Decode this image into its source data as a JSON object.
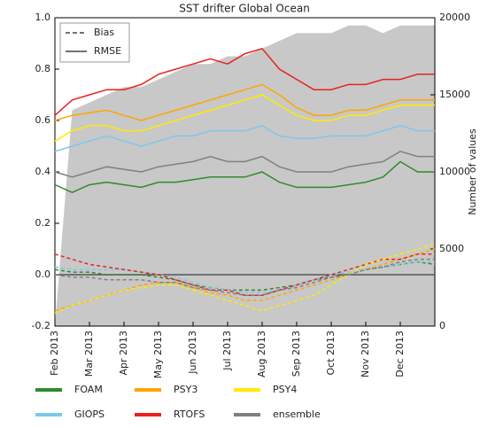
{
  "chart_data": {
    "type": "line",
    "title": "SST drifter Global Ocean",
    "y2label": "Number of values",
    "x": [
      0,
      0.5,
      1,
      1.5,
      2,
      2.5,
      3,
      3.5,
      4,
      4.5,
      5,
      5.5,
      6,
      6.5,
      7,
      7.5,
      8,
      8.5,
      9,
      9.5,
      10,
      10.5,
      11
    ],
    "xlim": [
      0,
      11
    ],
    "xticks": [
      {
        "value": 0,
        "label": "Feb 2013"
      },
      {
        "value": 1,
        "label": "Mar 2013"
      },
      {
        "value": 2,
        "label": "Apr 2013"
      },
      {
        "value": 3,
        "label": "May 2013"
      },
      {
        "value": 4,
        "label": "Jun 2013"
      },
      {
        "value": 5,
        "label": "Jul 2013"
      },
      {
        "value": 6,
        "label": "Aug 2013"
      },
      {
        "value": 7,
        "label": "Sep 2013"
      },
      {
        "value": 8,
        "label": "Oct 2013"
      },
      {
        "value": 9,
        "label": "Nov 2013"
      },
      {
        "value": 10,
        "label": "Dec 2013"
      }
    ],
    "ylim": [
      -0.2,
      1.0
    ],
    "yticks": [
      -0.2,
      {
        "value": 0,
        "label": "0.0"
      },
      0.2,
      0.4,
      0.6,
      0.8,
      {
        "value": 1,
        "label": "1.0"
      }
    ],
    "y2lim": [
      0,
      20000
    ],
    "y2ticks": [
      0,
      5000,
      10000,
      15000,
      20000
    ],
    "count": {
      "color": "#c8c8c8",
      "axis": "y2",
      "values": [
        0,
        14000,
        14500,
        15000,
        15500,
        15500,
        16000,
        16500,
        17000,
        17000,
        17500,
        17500,
        18000,
        18500,
        19000,
        19000,
        19000,
        19500,
        19500,
        19000,
        19500,
        19500,
        19500
      ]
    },
    "style_legend": [
      "Bias",
      "RMSE"
    ],
    "series": [
      {
        "name": "FOAM",
        "color": "#2e8b2e",
        "values": [
          0.35,
          0.32,
          0.35,
          0.36,
          0.35,
          0.34,
          0.36,
          0.36,
          0.37,
          0.38,
          0.38,
          0.38,
          0.4,
          0.36,
          0.34,
          0.34,
          0.34,
          0.35,
          0.36,
          0.38,
          0.44,
          0.4,
          0.4
        ],
        "bias": [
          0.02,
          0.01,
          0.01,
          0.0,
          0.0,
          0.0,
          -0.01,
          -0.02,
          -0.04,
          -0.05,
          -0.06,
          -0.06,
          -0.06,
          -0.05,
          -0.04,
          -0.02,
          -0.01,
          0.0,
          0.02,
          0.03,
          0.04,
          0.05,
          0.04
        ]
      },
      {
        "name": "GIOPS",
        "color": "#7ec8e8",
        "values": [
          0.48,
          0.5,
          0.52,
          0.54,
          0.52,
          0.5,
          0.52,
          0.54,
          0.54,
          0.56,
          0.56,
          0.56,
          0.58,
          0.54,
          0.53,
          0.53,
          0.54,
          0.54,
          0.54,
          0.56,
          0.58,
          0.56,
          0.56
        ],
        "bias": [
          0.03,
          0.02,
          0.02,
          0.02,
          0.02,
          0.01,
          0.0,
          -0.01,
          -0.03,
          -0.05,
          -0.06,
          -0.07,
          -0.07,
          -0.06,
          -0.04,
          -0.02,
          0.0,
          0.01,
          0.02,
          0.03,
          0.04,
          0.05,
          0.05
        ]
      },
      {
        "name": "PSY3",
        "color": "#ffa500",
        "values": [
          0.6,
          0.62,
          0.63,
          0.64,
          0.62,
          0.6,
          0.62,
          0.64,
          0.66,
          0.68,
          0.7,
          0.72,
          0.74,
          0.7,
          0.65,
          0.62,
          0.62,
          0.64,
          0.64,
          0.66,
          0.68,
          0.68,
          0.68
        ],
        "bias": [
          -0.14,
          -0.12,
          -0.1,
          -0.08,
          -0.06,
          -0.04,
          -0.03,
          -0.03,
          -0.05,
          -0.07,
          -0.08,
          -0.1,
          -0.1,
          -0.08,
          -0.06,
          -0.04,
          -0.02,
          0.0,
          0.02,
          0.04,
          0.06,
          0.08,
          0.1
        ]
      },
      {
        "name": "RTOFS",
        "color": "#e8231e",
        "values": [
          0.62,
          0.68,
          0.7,
          0.72,
          0.72,
          0.74,
          0.78,
          0.8,
          0.82,
          0.84,
          0.82,
          0.86,
          0.88,
          0.8,
          0.76,
          0.72,
          0.72,
          0.74,
          0.74,
          0.76,
          0.76,
          0.78,
          0.78
        ],
        "bias": [
          0.08,
          0.06,
          0.04,
          0.03,
          0.02,
          0.01,
          0.0,
          -0.02,
          -0.04,
          -0.06,
          -0.06,
          -0.08,
          -0.08,
          -0.06,
          -0.04,
          -0.02,
          0.0,
          0.02,
          0.04,
          0.06,
          0.06,
          0.08,
          0.08
        ]
      },
      {
        "name": "PSY4",
        "color": "#ffea00",
        "values": [
          0.52,
          0.56,
          0.58,
          0.58,
          0.56,
          0.56,
          0.58,
          0.6,
          0.62,
          0.64,
          0.66,
          0.68,
          0.7,
          0.66,
          0.62,
          0.6,
          0.6,
          0.62,
          0.62,
          0.64,
          0.66,
          0.66,
          0.66
        ],
        "bias": [
          -0.15,
          -0.12,
          -0.1,
          -0.08,
          -0.06,
          -0.05,
          -0.04,
          -0.04,
          -0.06,
          -0.08,
          -0.1,
          -0.12,
          -0.14,
          -0.12,
          -0.1,
          -0.08,
          -0.04,
          0.0,
          0.04,
          0.06,
          0.08,
          0.1,
          0.12
        ]
      },
      {
        "name": "ensemble",
        "color": "#808080",
        "values": [
          0.4,
          0.38,
          0.4,
          0.42,
          0.41,
          0.4,
          0.42,
          0.43,
          0.44,
          0.46,
          0.44,
          0.44,
          0.46,
          0.42,
          0.4,
          0.4,
          0.4,
          0.42,
          0.43,
          0.44,
          0.48,
          0.46,
          0.46
        ],
        "bias": [
          0.0,
          -0.01,
          -0.01,
          -0.02,
          -0.02,
          -0.02,
          -0.03,
          -0.03,
          -0.05,
          -0.06,
          -0.07,
          -0.08,
          -0.08,
          -0.06,
          -0.05,
          -0.03,
          -0.01,
          0.0,
          0.02,
          0.03,
          0.05,
          0.06,
          0.06
        ]
      }
    ]
  }
}
